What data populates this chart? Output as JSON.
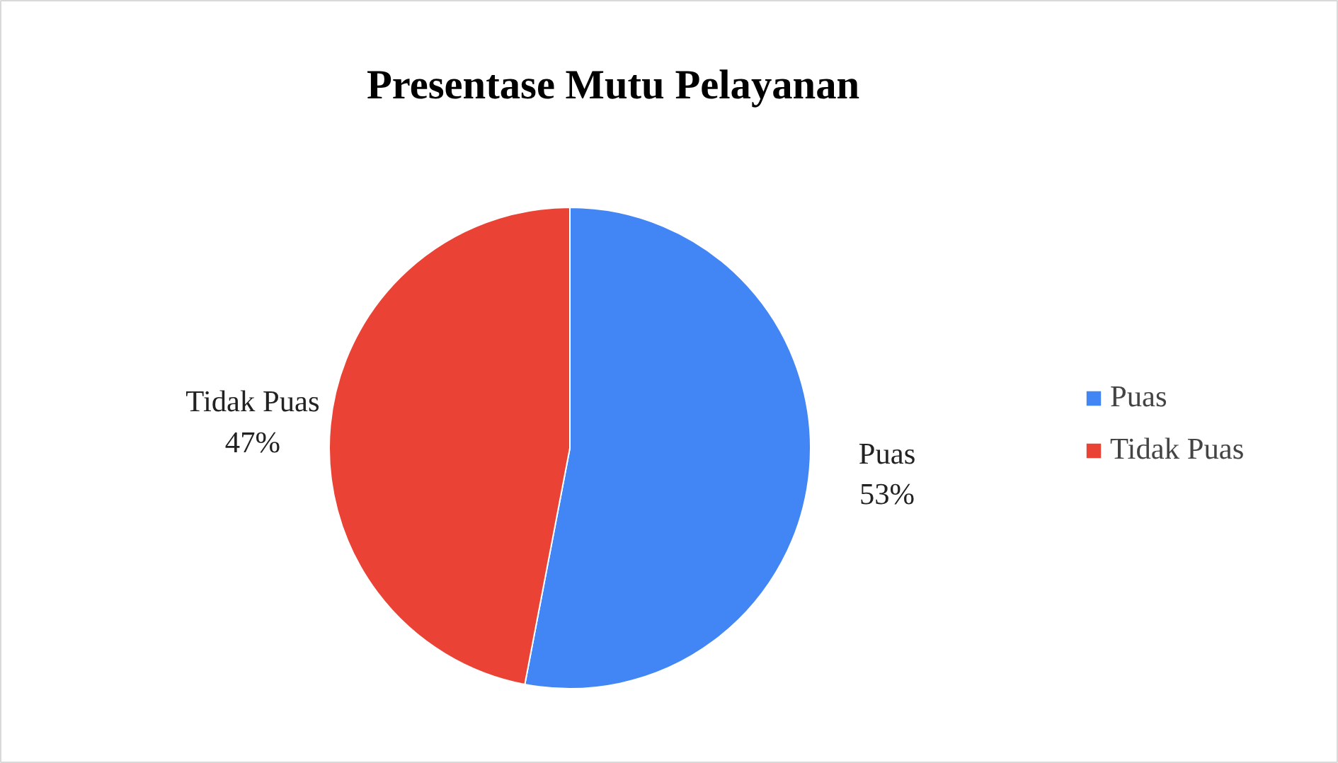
{
  "chart_data": {
    "type": "pie",
    "title": "Presentase Mutu Pelayanan",
    "categories": [
      "Puas",
      "Tidak Puas"
    ],
    "values": [
      53,
      47
    ],
    "colors": [
      "#4285f4",
      "#ea4335"
    ],
    "value_labels": [
      "53%",
      "47%"
    ],
    "legend": "right"
  }
}
